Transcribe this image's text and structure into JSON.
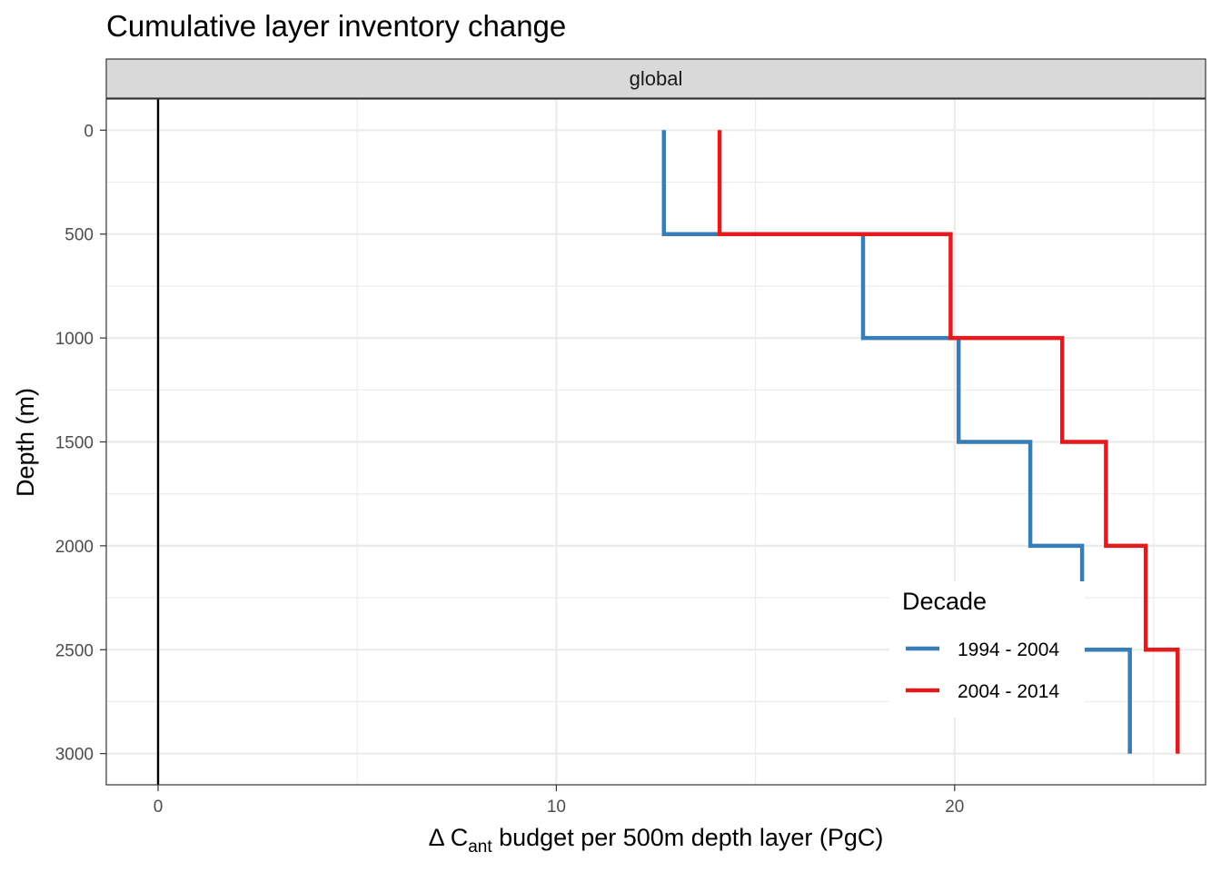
{
  "chart_data": {
    "type": "line",
    "subtype": "step",
    "title": "Cumulative layer inventory change",
    "facet_label": "global",
    "xlabel": {
      "prefix": "Δ C",
      "subscript": "ant",
      "suffix": " budget per 500m depth layer (PgC)"
    },
    "ylabel": "Depth (m)",
    "xlim": [
      -1.3,
      26.3
    ],
    "ylim": [
      3150,
      -150
    ],
    "y_reversed": true,
    "x_ticks": [
      0,
      10,
      20
    ],
    "x_tick_labels": [
      "0",
      "10",
      "20"
    ],
    "y_ticks": [
      0,
      500,
      1000,
      1500,
      2000,
      2500,
      3000
    ],
    "y_tick_labels": [
      "0",
      "500",
      "1000",
      "1500",
      "2000",
      "2500",
      "3000"
    ],
    "grid": true,
    "zero_line": 0,
    "legend": {
      "title": "Decade",
      "position": "bottom-right"
    },
    "series": [
      {
        "name": "1994 - 2004",
        "color": "#377eb8",
        "points": [
          {
            "x": 12.7,
            "y": 0
          },
          {
            "x": 12.7,
            "y": 500
          },
          {
            "x": 17.7,
            "y": 500
          },
          {
            "x": 17.7,
            "y": 1000
          },
          {
            "x": 20.1,
            "y": 1000
          },
          {
            "x": 20.1,
            "y": 1500
          },
          {
            "x": 21.9,
            "y": 1500
          },
          {
            "x": 21.9,
            "y": 2000
          },
          {
            "x": 23.2,
            "y": 2000
          },
          {
            "x": 23.2,
            "y": 2500
          },
          {
            "x": 24.4,
            "y": 2500
          },
          {
            "x": 24.4,
            "y": 3000
          }
        ]
      },
      {
        "name": "2004 - 2014",
        "color": "#e41a1c",
        "points": [
          {
            "x": 14.1,
            "y": 0
          },
          {
            "x": 14.1,
            "y": 500
          },
          {
            "x": 19.9,
            "y": 500
          },
          {
            "x": 19.9,
            "y": 1000
          },
          {
            "x": 22.7,
            "y": 1000
          },
          {
            "x": 22.7,
            "y": 1500
          },
          {
            "x": 23.8,
            "y": 1500
          },
          {
            "x": 23.8,
            "y": 2000
          },
          {
            "x": 24.8,
            "y": 2000
          },
          {
            "x": 24.8,
            "y": 2500
          },
          {
            "x": 25.6,
            "y": 2500
          },
          {
            "x": 25.6,
            "y": 3000
          }
        ]
      }
    ]
  }
}
